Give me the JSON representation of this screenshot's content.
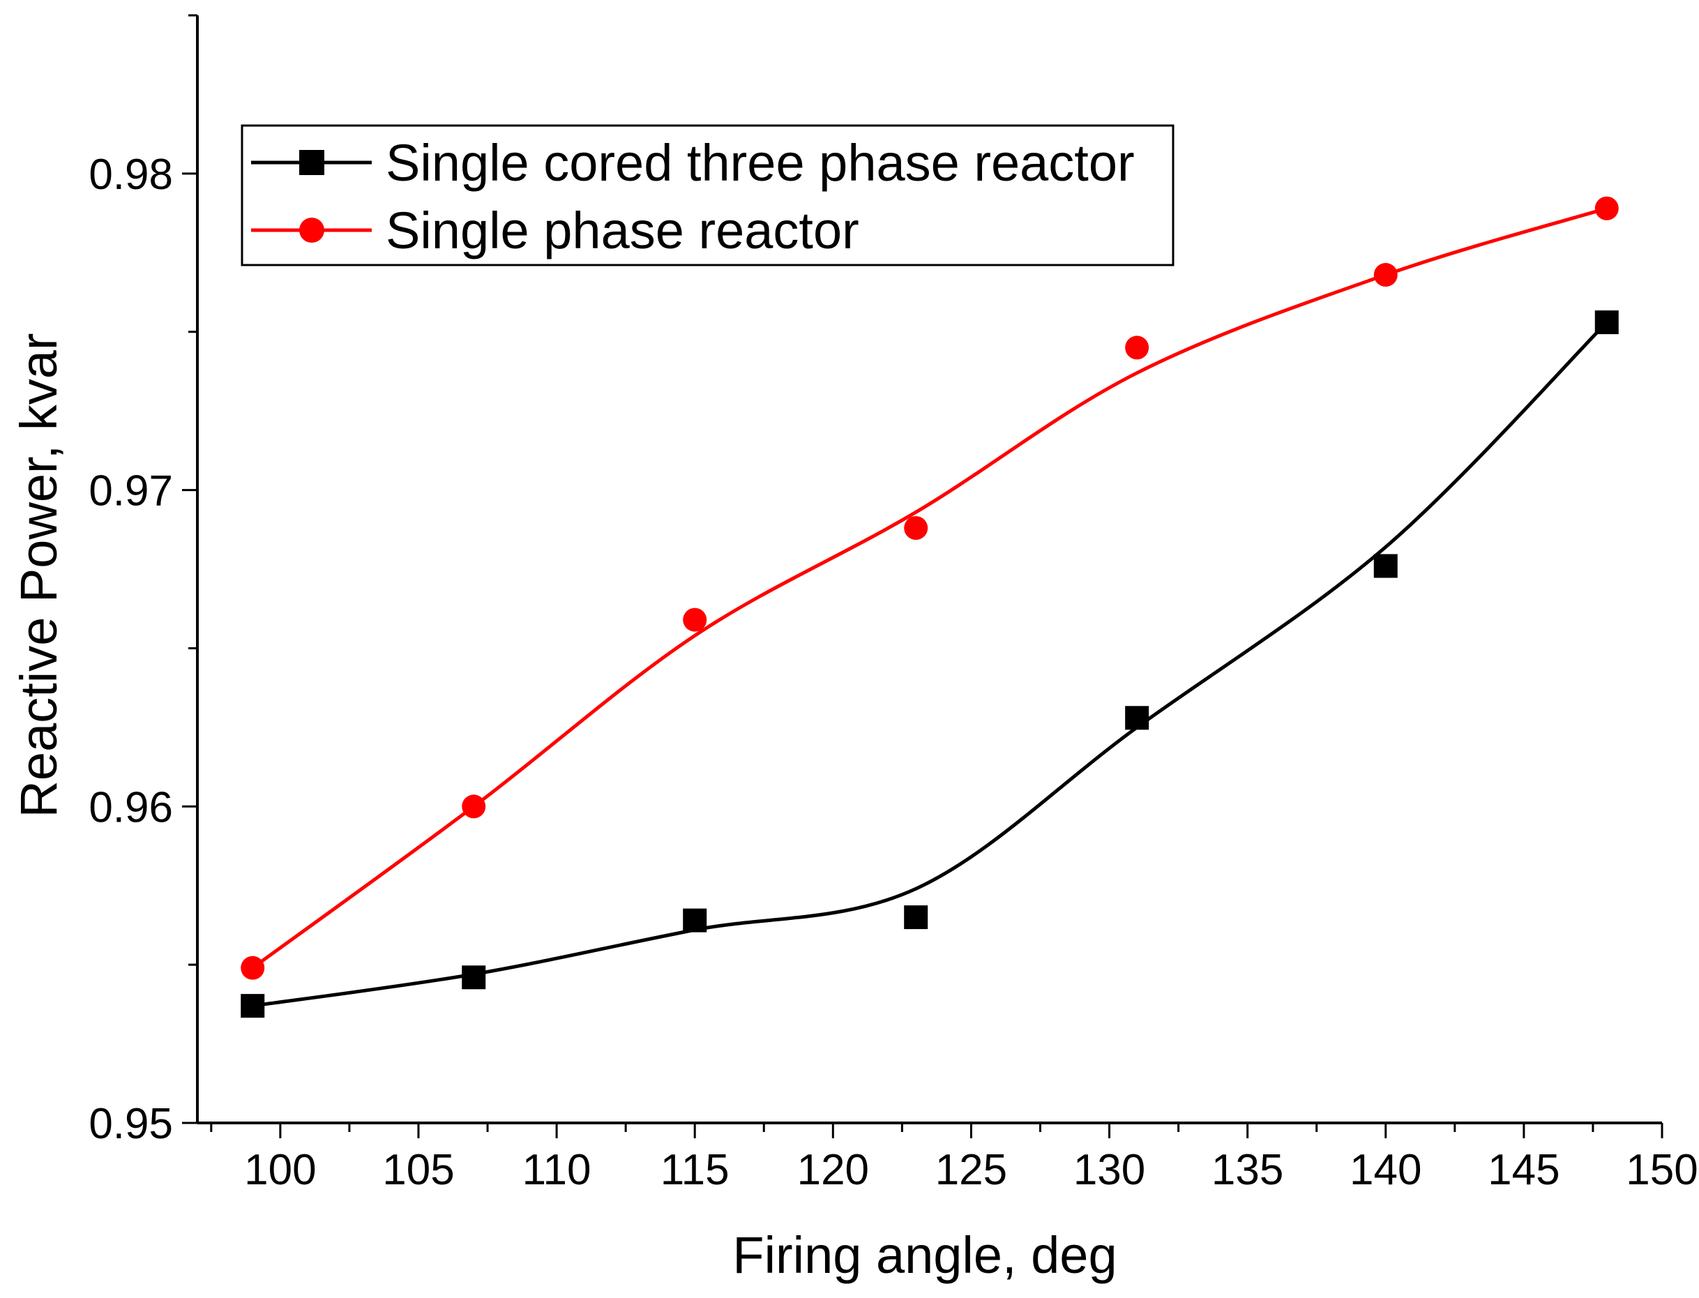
{
  "chart_data": {
    "type": "line",
    "xlabel": "Firing angle, deg",
    "ylabel": "Reactive Power, kvar",
    "xlim": [
      97,
      150
    ],
    "ylim": [
      0.95,
      0.985
    ],
    "x_ticks": [
      "100",
      "105",
      "110",
      "115",
      "120",
      "125",
      "130",
      "135",
      "140",
      "145",
      "150"
    ],
    "x_tick_values": [
      100,
      105,
      110,
      115,
      120,
      125,
      130,
      135,
      140,
      145,
      150
    ],
    "y_ticks": [
      "0.95",
      "0.96",
      "0.97",
      "0.98"
    ],
    "y_tick_values": [
      0.95,
      0.96,
      0.97,
      0.98
    ],
    "grid": false,
    "legend_position": "top-left",
    "series": [
      {
        "name": "Single cored three phase reactor",
        "color": "#000000",
        "marker": "square",
        "x": [
          99,
          107,
          115,
          123,
          131,
          140,
          148
        ],
        "y": [
          0.9537,
          0.9546,
          0.9564,
          0.9565,
          0.9628,
          0.9676,
          0.9753
        ],
        "curve_y": [
          0.9537,
          0.9547,
          0.9561,
          0.9574,
          0.9625,
          0.9682,
          0.9753
        ]
      },
      {
        "name": "Single phase reactor",
        "color": "#ff0000",
        "marker": "circle",
        "x": [
          99,
          107,
          115,
          123,
          131,
          140,
          148
        ],
        "y": [
          0.9549,
          0.96,
          0.9659,
          0.9688,
          0.9745,
          0.9768,
          0.9789
        ],
        "curve_y": [
          0.9549,
          0.96,
          0.9654,
          0.9693,
          0.9737,
          0.9768,
          0.9789
        ]
      }
    ]
  }
}
